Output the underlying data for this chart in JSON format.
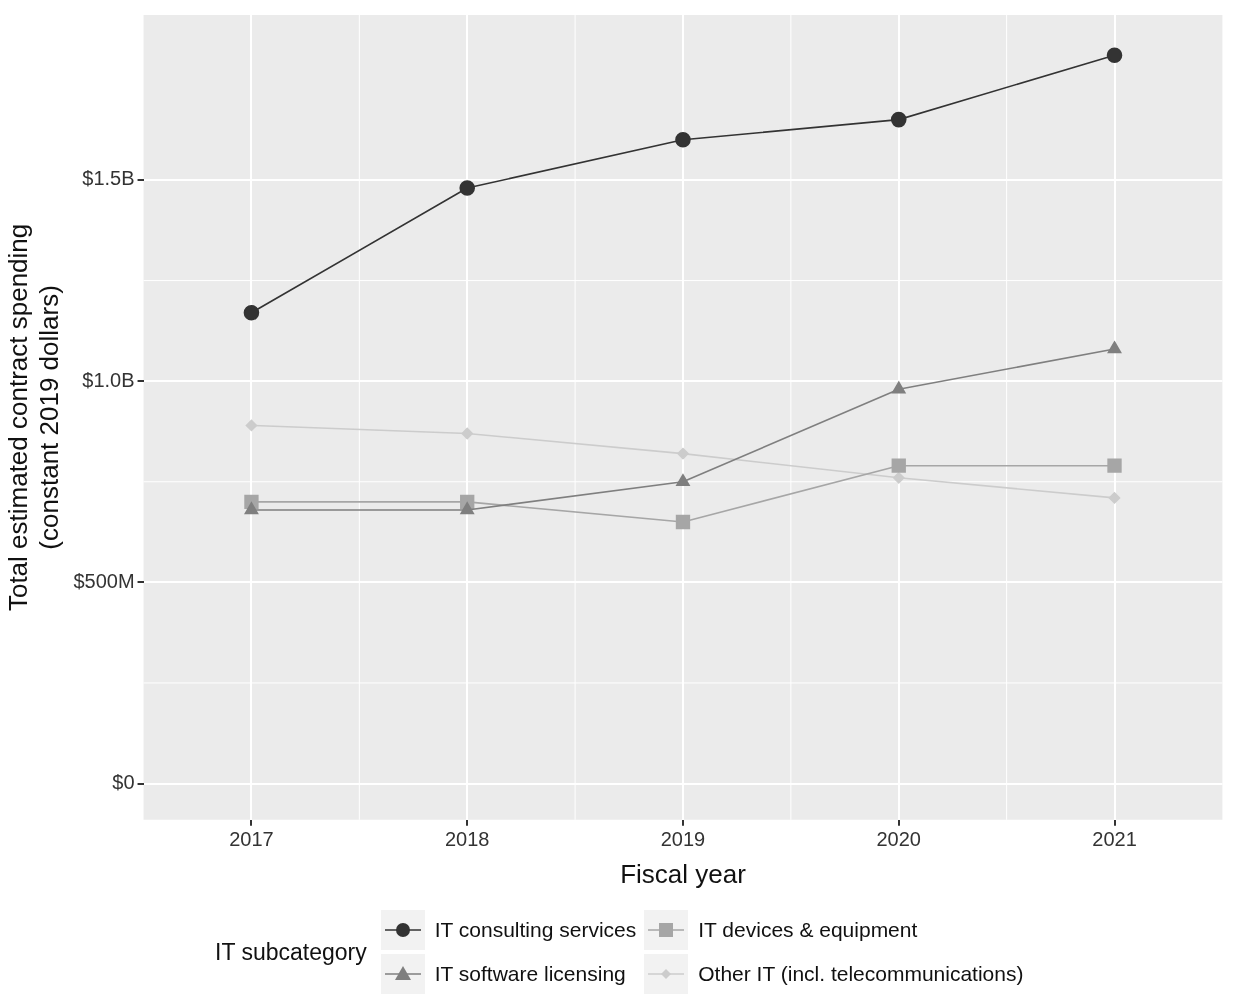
{
  "chart_data": {
    "type": "line",
    "xlabel": "Fiscal year",
    "ylabel": "Total estimated contract spending\n(constant 2019 dollars)",
    "legend_title": "IT subcategory",
    "legend": "bottom",
    "grid": true,
    "categories": [
      "2017",
      "2018",
      "2019",
      "2020",
      "2021"
    ],
    "ylim": [
      -90000000,
      1910000000
    ],
    "yticks": [
      {
        "value": 0,
        "label": "$0"
      },
      {
        "value": 500000000,
        "label": "$500M"
      },
      {
        "value": 1000000000,
        "label": "$1.0B"
      },
      {
        "value": 1500000000,
        "label": "$1.5B"
      }
    ],
    "series": [
      {
        "name": "IT consulting services",
        "color": "#333333",
        "marker": "circle",
        "values": [
          1170000000,
          1480000000,
          1600000000,
          1650000000,
          1810000000
        ]
      },
      {
        "name": "IT software licensing",
        "color": "#7f7f7f",
        "marker": "triangle",
        "values": [
          680000000,
          680000000,
          750000000,
          980000000,
          1080000000
        ]
      },
      {
        "name": "IT devices & equipment",
        "color": "#a6a6a6",
        "marker": "square",
        "values": [
          700000000,
          700000000,
          650000000,
          790000000,
          790000000
        ]
      },
      {
        "name": "Other IT (incl. telecommunications)",
        "color": "#cccccc",
        "marker": "diamond",
        "values": [
          890000000,
          870000000,
          820000000,
          760000000,
          710000000
        ]
      }
    ]
  }
}
